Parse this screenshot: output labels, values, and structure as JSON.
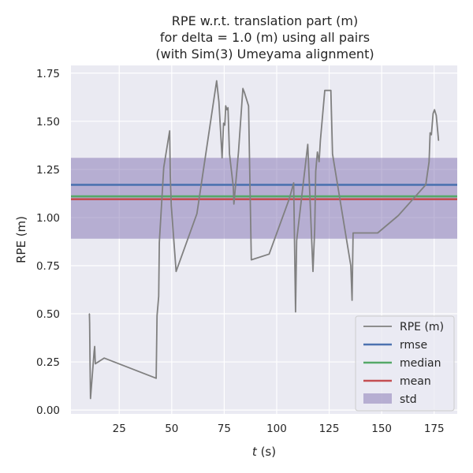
{
  "chart_data": {
    "type": "line",
    "title_lines": [
      "RPE w.r.t. translation part (m)",
      "for delta = 1.0 (m) using all pairs",
      "(with Sim(3) Umeyama alignment)"
    ],
    "xlabel_var": "t",
    "xlabel_unit": " (s)",
    "ylabel": "RPE (m)",
    "xlim": [
      2,
      186
    ],
    "ylim": [
      -0.02,
      1.79
    ],
    "x_ticks": [
      25,
      50,
      75,
      100,
      125,
      150,
      175
    ],
    "x_tick_labels": [
      "25",
      "50",
      "75",
      "100",
      "125",
      "150",
      "175"
    ],
    "y_ticks": [
      0.0,
      0.25,
      0.5,
      0.75,
      1.0,
      1.25,
      1.5,
      1.75
    ],
    "y_tick_labels": [
      "0.00",
      "0.25",
      "0.50",
      "0.75",
      "1.00",
      "1.25",
      "1.50",
      "1.75"
    ],
    "grid": true,
    "legend_position": "lower-right",
    "series": [
      {
        "name": "RPE (m)",
        "color": "#808080",
        "x": [
          10.8,
          10.9,
          11.1,
          11.3,
          13.0,
          13.3,
          13.6,
          17.8,
          42.6,
          43.0,
          43.8,
          44.1,
          46.2,
          49.0,
          49.3,
          49.8,
          52.1,
          62.0,
          71.4,
          72.5,
          74.0,
          74.7,
          75.3,
          75.7,
          76.3,
          76.8,
          77.5,
          79.3,
          79.6,
          81.8,
          83.9,
          84.6,
          86.6,
          87.9,
          96.4,
          106.1,
          108.1,
          109.0,
          109.5,
          114.8,
          117.3,
          118.1,
          118.6,
          119.4,
          120.2,
          120.8,
          122.9,
          124.9,
          125.8,
          126.6,
          135.3,
          135.9,
          136.4,
          148.1,
          157.9,
          171.0,
          172.6,
          173.1,
          173.7,
          174.5,
          175.2,
          176.0,
          177.1
        ],
        "y": [
          0.5,
          0.45,
          0.25,
          0.06,
          0.3,
          0.33,
          0.24,
          0.27,
          0.165,
          0.49,
          0.59,
          0.87,
          1.26,
          1.45,
          1.22,
          1.06,
          0.72,
          1.02,
          1.71,
          1.6,
          1.31,
          1.49,
          1.48,
          1.58,
          1.56,
          1.57,
          1.33,
          1.16,
          1.07,
          1.34,
          1.67,
          1.65,
          1.58,
          0.78,
          0.81,
          1.1,
          1.18,
          0.51,
          0.88,
          1.38,
          0.72,
          0.94,
          1.24,
          1.34,
          1.29,
          1.4,
          1.66,
          1.66,
          1.66,
          1.33,
          0.75,
          0.57,
          0.92,
          0.92,
          1.01,
          1.17,
          1.29,
          1.44,
          1.43,
          1.54,
          1.56,
          1.53,
          1.4
        ]
      }
    ],
    "hlines": [
      {
        "name": "rmse",
        "value": 1.17,
        "color": "#4c72b0"
      },
      {
        "name": "median",
        "value": 1.11,
        "color": "#55a868"
      },
      {
        "name": "mean",
        "value": 1.095,
        "color": "#c44e52"
      }
    ],
    "band": {
      "name": "std",
      "low": 0.89,
      "high": 1.31,
      "color": "#8172b2",
      "opacity": 0.5
    }
  }
}
